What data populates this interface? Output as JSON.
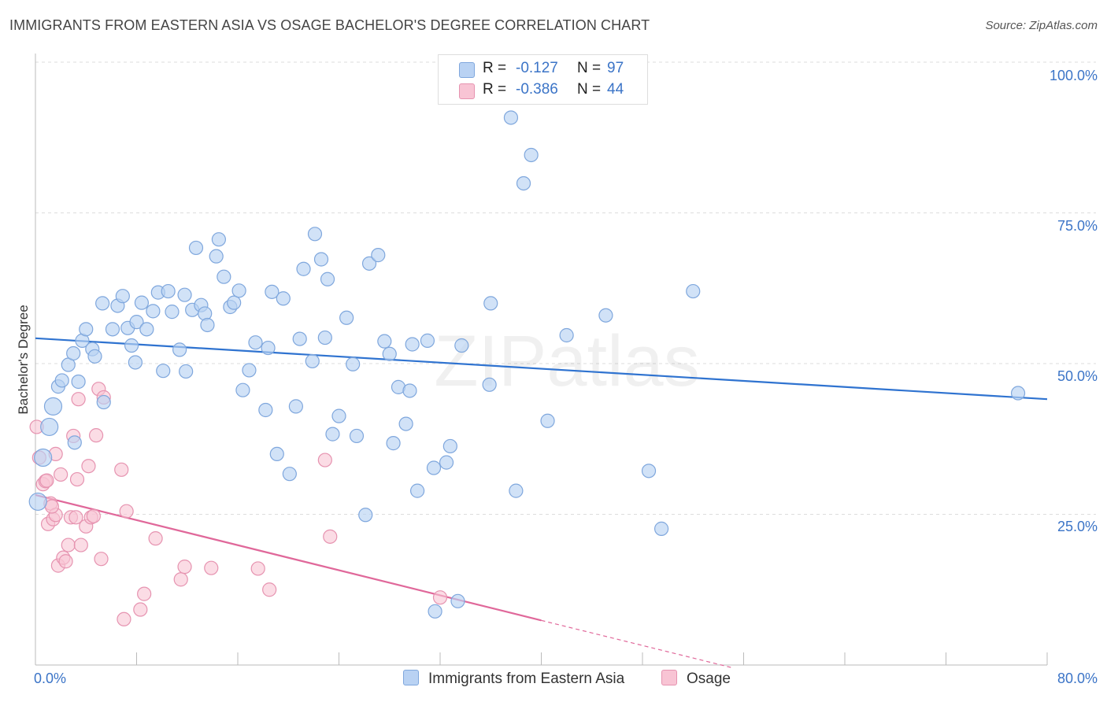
{
  "title": "IMMIGRANTS FROM EASTERN ASIA VS OSAGE BACHELOR'S DEGREE CORRELATION CHART",
  "source": "Source: ZipAtlas.com",
  "watermark": "ZIPatlas",
  "legend": {
    "rows": [
      {
        "r_label": "R =",
        "r_value": "-0.127",
        "n_label": "N =",
        "n_value": "97"
      },
      {
        "r_label": "R =",
        "r_value": "-0.386",
        "n_label": "N =",
        "n_value": "44"
      }
    ]
  },
  "bottom_legend": [
    "Immigrants from Eastern Asia",
    "Osage"
  ],
  "y_axis_label": "Bachelor's Degree",
  "y_ticks": [
    "100.0%",
    "75.0%",
    "50.0%",
    "25.0%"
  ],
  "x_ticks": [
    "0.0%",
    "80.0%"
  ],
  "colors": {
    "blue_fill": "#b9d2f3",
    "blue_stroke": "#7fa7dd",
    "blue_line": "#2f73d0",
    "pink_fill": "#f8c4d4",
    "pink_stroke": "#e693b0",
    "pink_line": "#e0689a",
    "axis_text": "#3b74c7",
    "grid": "#dddddd"
  },
  "chart_data": {
    "type": "scatter",
    "xlim": [
      0,
      80
    ],
    "ylim": [
      0,
      100
    ],
    "x_unit": "%",
    "y_unit": "%",
    "series": [
      {
        "name": "Immigrants from Eastern Asia",
        "color": "#b9d2f3",
        "trend": {
          "x": [
            0,
            80
          ],
          "y": [
            54.2,
            44.1
          ]
        },
        "points": [
          [
            0.2,
            27.1
          ],
          [
            0.6,
            34.4
          ],
          [
            1.1,
            39.5
          ],
          [
            1.4,
            42.9
          ],
          [
            1.8,
            46.2
          ],
          [
            2.1,
            47.2
          ],
          [
            2.6,
            49.8
          ],
          [
            3.0,
            51.7
          ],
          [
            3.4,
            47.0
          ],
          [
            3.7,
            53.8
          ],
          [
            4.0,
            55.7
          ],
          [
            4.5,
            52.4
          ],
          [
            4.7,
            51.2
          ],
          [
            5.4,
            43.6
          ],
          [
            5.3,
            60.0
          ],
          [
            6.1,
            55.7
          ],
          [
            6.5,
            59.6
          ],
          [
            6.9,
            61.2
          ],
          [
            7.3,
            55.9
          ],
          [
            7.6,
            53.0
          ],
          [
            8.0,
            56.9
          ],
          [
            8.4,
            60.1
          ],
          [
            8.8,
            55.7
          ],
          [
            9.3,
            58.7
          ],
          [
            9.7,
            61.8
          ],
          [
            10.1,
            48.8
          ],
          [
            10.5,
            62.0
          ],
          [
            10.8,
            58.6
          ],
          [
            11.4,
            52.3
          ],
          [
            11.8,
            61.4
          ],
          [
            11.9,
            48.7
          ],
          [
            12.4,
            58.9
          ],
          [
            12.7,
            69.2
          ],
          [
            13.1,
            59.7
          ],
          [
            13.4,
            58.3
          ],
          [
            13.6,
            56.4
          ],
          [
            14.3,
            67.8
          ],
          [
            14.5,
            70.6
          ],
          [
            14.9,
            64.4
          ],
          [
            15.4,
            59.4
          ],
          [
            15.7,
            60.1
          ],
          [
            16.1,
            62.1
          ],
          [
            16.9,
            48.9
          ],
          [
            17.4,
            53.5
          ],
          [
            18.2,
            42.3
          ],
          [
            18.4,
            52.6
          ],
          [
            18.7,
            61.9
          ],
          [
            19.1,
            35.0
          ],
          [
            19.6,
            60.8
          ],
          [
            20.1,
            31.7
          ],
          [
            20.6,
            42.9
          ],
          [
            20.9,
            54.1
          ],
          [
            21.2,
            65.7
          ],
          [
            21.9,
            50.4
          ],
          [
            22.1,
            71.5
          ],
          [
            22.6,
            67.3
          ],
          [
            22.9,
            54.3
          ],
          [
            23.1,
            64.0
          ],
          [
            23.5,
            38.3
          ],
          [
            24.0,
            41.3
          ],
          [
            24.6,
            57.6
          ],
          [
            25.1,
            49.9
          ],
          [
            25.4,
            38.0
          ],
          [
            26.1,
            24.9
          ],
          [
            26.4,
            66.6
          ],
          [
            27.1,
            68.0
          ],
          [
            27.6,
            53.7
          ],
          [
            28.0,
            51.6
          ],
          [
            28.3,
            36.8
          ],
          [
            28.7,
            46.1
          ],
          [
            29.3,
            40.0
          ],
          [
            29.6,
            45.5
          ],
          [
            29.8,
            53.2
          ],
          [
            30.2,
            28.9
          ],
          [
            31.0,
            53.8
          ],
          [
            31.5,
            32.7
          ],
          [
            31.6,
            8.9
          ],
          [
            32.5,
            33.6
          ],
          [
            32.8,
            36.3
          ],
          [
            33.4,
            10.6
          ],
          [
            33.7,
            53.0
          ],
          [
            35.9,
            46.5
          ],
          [
            36.0,
            60.0
          ],
          [
            37.6,
            90.8
          ],
          [
            38.0,
            28.9
          ],
          [
            38.6,
            79.9
          ],
          [
            39.2,
            84.6
          ],
          [
            40.5,
            40.5
          ],
          [
            42.0,
            54.7
          ],
          [
            45.1,
            58.0
          ],
          [
            48.5,
            32.2
          ],
          [
            49.5,
            22.6
          ],
          [
            52.0,
            62.0
          ],
          [
            77.7,
            45.1
          ],
          [
            3.1,
            36.9
          ],
          [
            7.9,
            50.2
          ],
          [
            16.4,
            45.6
          ]
        ]
      },
      {
        "name": "Osage",
        "color": "#f8c4d4",
        "trend": {
          "x": [
            0,
            40
          ],
          "y": [
            28.2,
            7.4
          ]
        },
        "trend_dashed": {
          "x": [
            40,
            55
          ],
          "y": [
            7.4,
            -0.4
          ]
        },
        "points": [
          [
            0.1,
            39.5
          ],
          [
            0.3,
            34.4
          ],
          [
            0.6,
            30.0
          ],
          [
            0.8,
            30.5
          ],
          [
            1.0,
            23.4
          ],
          [
            1.2,
            26.8
          ],
          [
            1.4,
            24.2
          ],
          [
            1.6,
            24.9
          ],
          [
            1.6,
            35.0
          ],
          [
            1.8,
            16.5
          ],
          [
            2.0,
            31.6
          ],
          [
            2.2,
            17.8
          ],
          [
            2.4,
            17.2
          ],
          [
            2.6,
            19.9
          ],
          [
            2.8,
            24.5
          ],
          [
            3.0,
            38.0
          ],
          [
            3.2,
            24.5
          ],
          [
            3.3,
            30.8
          ],
          [
            3.4,
            44.1
          ],
          [
            3.6,
            19.9
          ],
          [
            4.0,
            23.0
          ],
          [
            4.2,
            33.0
          ],
          [
            4.4,
            24.5
          ],
          [
            4.6,
            24.7
          ],
          [
            4.8,
            38.1
          ],
          [
            5.0,
            45.8
          ],
          [
            5.2,
            17.6
          ],
          [
            5.4,
            44.4
          ],
          [
            6.8,
            32.4
          ],
          [
            7.0,
            7.6
          ],
          [
            7.2,
            25.5
          ],
          [
            8.3,
            9.2
          ],
          [
            8.6,
            11.8
          ],
          [
            9.5,
            21.0
          ],
          [
            11.5,
            14.2
          ],
          [
            11.8,
            16.3
          ],
          [
            13.9,
            16.1
          ],
          [
            17.6,
            16.0
          ],
          [
            18.5,
            12.5
          ],
          [
            22.9,
            34.0
          ],
          [
            23.3,
            21.3
          ],
          [
            32.0,
            11.2
          ],
          [
            1.3,
            26.3
          ],
          [
            0.9,
            30.6
          ]
        ]
      }
    ]
  }
}
